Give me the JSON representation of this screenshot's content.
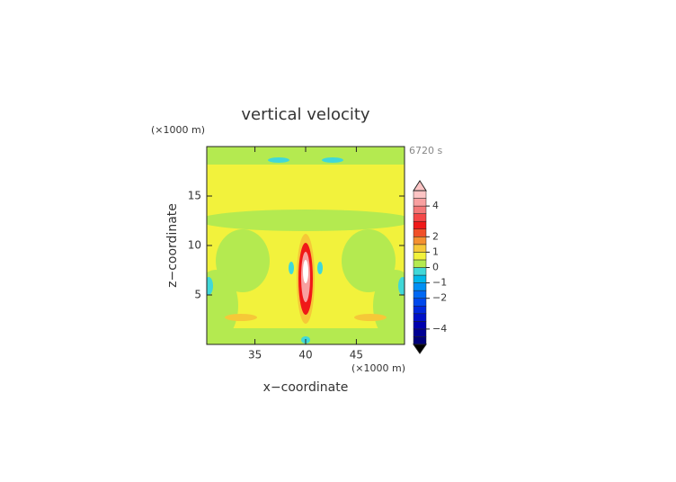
{
  "chart_data": {
    "type": "contour",
    "title": "vertical velocity",
    "time_label": "6720 s",
    "x_label": "x−coordinate",
    "y_label": "z−coordinate",
    "x_unit": "(×1000 m)",
    "y_unit": "(×1000 m)",
    "xlim": [
      30.25,
      49.75
    ],
    "xticks": [
      35,
      40,
      45
    ],
    "ylim": [
      0,
      20
    ],
    "yticks": [
      5,
      10,
      15
    ],
    "colorbar": {
      "lim": [
        -5,
        5
      ],
      "ticks": [
        {
          "value": -4,
          "label": "−4"
        },
        {
          "value": -2,
          "label": "−2"
        },
        {
          "value": -1,
          "label": "−1"
        },
        0,
        1,
        2,
        4
      ],
      "bounds": [
        -5,
        -4.5,
        -4,
        -3.5,
        -3,
        -2.5,
        -2,
        -1.5,
        -1,
        -0.5,
        0,
        0.5,
        1,
        1.5,
        2,
        2.5,
        3,
        3.5,
        4,
        4.5,
        5
      ],
      "colors": [
        "#00007a",
        "#000094",
        "#0000ae",
        "#0010c8",
        "#0028dc",
        "#0048ec",
        "#0068f4",
        "#0090f4",
        "#00b8ea",
        "#40d8d8",
        "#b4ea50",
        "#f2f23c",
        "#f6c838",
        "#f49030",
        "#f05028",
        "#f01818",
        "#f44848",
        "#f47878",
        "#f8a0a0",
        "#fcc4c4"
      ],
      "over_color": "#fcc4c4",
      "under_color": "#000000"
    }
  }
}
